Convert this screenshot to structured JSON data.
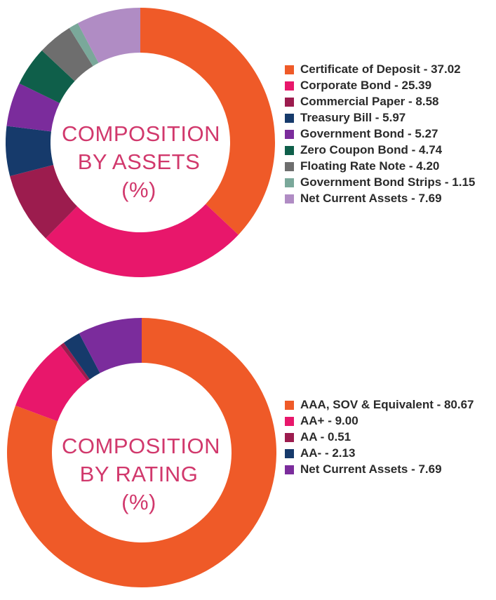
{
  "chart_data": [
    {
      "type": "pie",
      "title": "COMPOSITION BY ASSETS (%)",
      "title_lines": [
        "COMPOSITION",
        "BY ASSETS",
        "(%)"
      ],
      "legend_placement": "right",
      "slices": [
        {
          "label": "Certificate of Deposit - 37.02",
          "value": 37.02,
          "color": "#ef5a28"
        },
        {
          "label": "Corporate Bond - 25.39",
          "value": 25.39,
          "color": "#e8176b"
        },
        {
          "label": "Commercial Paper - 8.58",
          "value": 8.58,
          "color": "#9c1c4e"
        },
        {
          "label": "Treasury Bill - 5.97",
          "value": 5.97,
          "color": "#163a6b"
        },
        {
          "label": "Government Bond - 5.27",
          "value": 5.27,
          "color": "#7b2c9c"
        },
        {
          "label": "Zero Coupon Bond - 4.74",
          "value": 4.74,
          "color": "#0f5f4a"
        },
        {
          "label": "Floating Rate Note - 4.20",
          "value": 4.2,
          "color": "#6e6e6e"
        },
        {
          "label": "Government Bond Strips - 1.15",
          "value": 1.15,
          "color": "#7aa89a"
        },
        {
          "label": "Net Current Assets - 7.69",
          "value": 7.69,
          "color": "#b08cc4"
        }
      ]
    },
    {
      "type": "pie",
      "title": "COMPOSITION BY RATING (%)",
      "title_lines": [
        "COMPOSITION",
        "BY RATING",
        "(%)"
      ],
      "legend_placement": "right",
      "slices": [
        {
          "label": "AAA, SOV & Equivalent - 80.67",
          "value": 80.67,
          "color": "#ef5a28"
        },
        {
          "label": "AA+ - 9.00",
          "value": 9.0,
          "color": "#e8176b"
        },
        {
          "label": "AA - 0.51",
          "value": 0.51,
          "color": "#9c1c4e"
        },
        {
          "label": "AA- - 2.13",
          "value": 2.13,
          "color": "#163a6b"
        },
        {
          "label": "Net Current Assets - 7.69",
          "value": 7.69,
          "color": "#7b2c9c"
        }
      ]
    }
  ]
}
